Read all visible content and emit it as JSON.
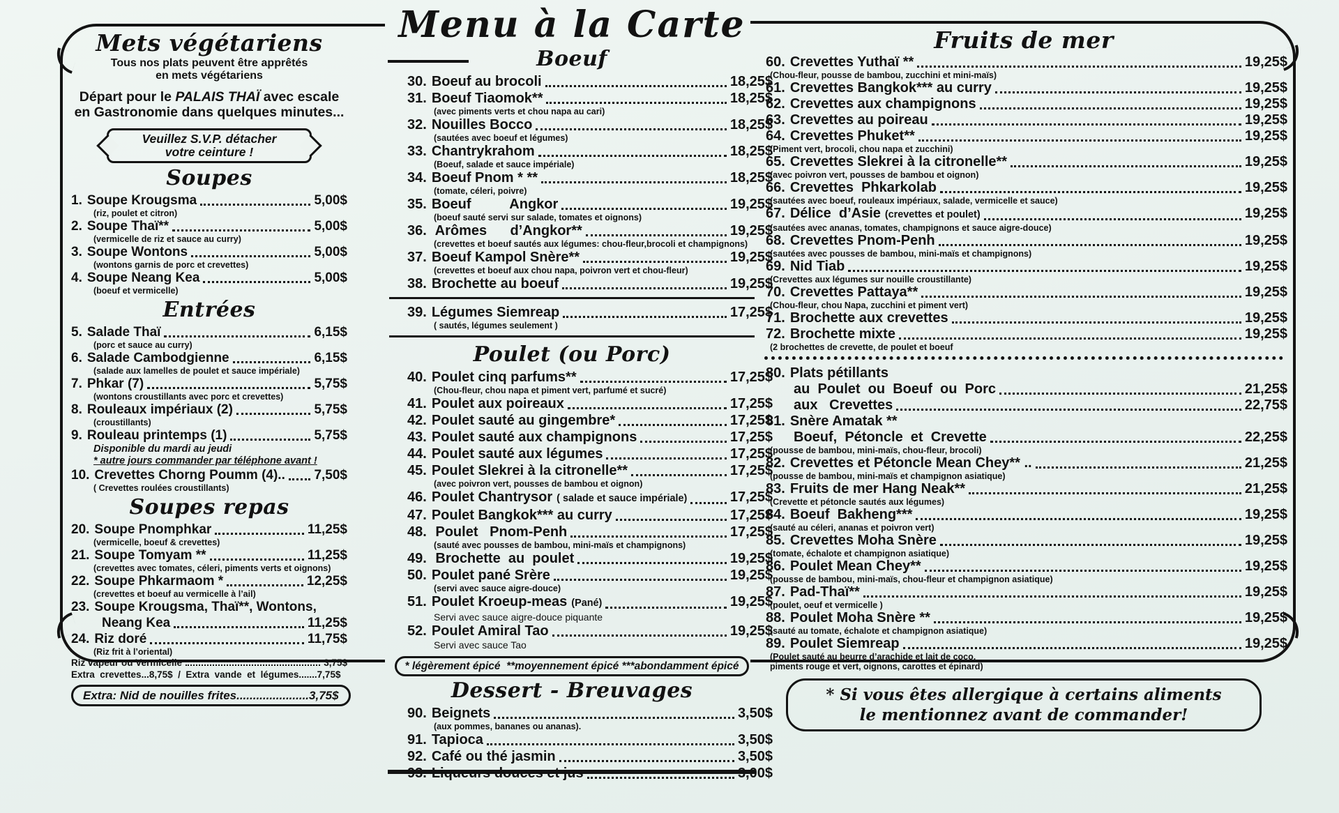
{
  "page": {
    "title": "Menu à la Carte",
    "ink": "#121212",
    "paper": "#edf3f0"
  },
  "left": {
    "title": "Mets végétariens",
    "subtitle1": "Tous nos plats peuvent être apprêtés",
    "subtitle2": "en mets végétariens",
    "intro1_pre": "Départ pour le ",
    "intro1_em": "PALAIS THAÏ",
    "intro1_post": " avec escale",
    "intro2": "en Gastronomie dans quelques minutes...",
    "banner1": "Veuillez S.V.P. détacher",
    "banner2": "votre ceinture !",
    "sections": [
      {
        "heading": "Soupes",
        "items": [
          {
            "num": "1.",
            "name": "Soupe Krougsma",
            "price": "5,00$",
            "notes": [
              {
                "t": "(riz, poulet et citron)",
                "s": "small"
              }
            ]
          },
          {
            "num": "2.",
            "name": "Soupe Thaï**",
            "price": "5,00$",
            "notes": [
              {
                "t": "(vermicelle de riz et sauce au curry)",
                "s": "small"
              }
            ]
          },
          {
            "num": "3.",
            "name": "Soupe Wontons",
            "price": "5,00$",
            "notes": [
              {
                "t": "(wontons garnis de porc et crevettes)",
                "s": "small"
              }
            ]
          },
          {
            "num": "4.",
            "name": "Soupe Neang Kea",
            "price": "5,00$",
            "notes": [
              {
                "t": "(boeuf et vermicelle)",
                "s": "small"
              }
            ]
          }
        ]
      },
      {
        "heading": "Entrées",
        "items": [
          {
            "num": "5.",
            "name": "Salade Thaï",
            "price": "6,15$",
            "notes": [
              {
                "t": "(porc et sauce au curry)",
                "s": "small"
              }
            ]
          },
          {
            "num": "6.",
            "name": "Salade Cambodgienne",
            "price": "6,15$",
            "notes": [
              {
                "t": "(salade aux lamelles de poulet et sauce impériale)",
                "s": "small"
              }
            ]
          },
          {
            "num": "7.",
            "name": "Phkar (7)",
            "price": "5,75$",
            "notes": [
              {
                "t": "(wontons croustillants avec porc et crevettes)",
                "s": "small"
              }
            ]
          },
          {
            "num": "8.",
            "name": "Rouleaux impériaux (2)",
            "price": "5,75$",
            "notes": [
              {
                "t": "(croustillants)",
                "s": "small"
              }
            ]
          },
          {
            "num": "9.",
            "name": "Rouleau printemps (1)",
            "price": "5,75$",
            "notes": [
              {
                "t": "Disponible du mardi au jeudi",
                "s": "italic"
              },
              {
                "t": "* autre jours commander par téléphone avant !",
                "s": "underline"
              }
            ]
          },
          {
            "num": "10.",
            "name": "Crevettes Chorng Poumm (4)..",
            "price": "7,50$",
            "notes": [
              {
                "t": "( Crevettes roulées croustillants)",
                "s": "small"
              }
            ]
          }
        ]
      },
      {
        "heading": "Soupes repas",
        "items": [
          {
            "num": "20.",
            "name": "Soupe Pnomphkar",
            "price": "11,25$",
            "notes": [
              {
                "t": "(vermicelle, boeuf & crevettes)",
                "s": "small"
              }
            ]
          },
          {
            "num": "21.",
            "name": "Soupe Tomyam **",
            "price": "11,25$",
            "notes": [
              {
                "t": "(crevettes avec tomates, céleri, piments verts et oignons)",
                "s": "small"
              }
            ]
          },
          {
            "num": "22.",
            "name": "Soupe Phkarmaom *",
            "price": "12,25$",
            "notes": [
              {
                "t": "(crevettes et boeuf au vermicelle à l’ail)",
                "s": "small"
              }
            ]
          },
          {
            "num": "23.",
            "name": "Soupe Krougsma, Thaï**, Wontons,",
            "line2": "Neang Kea",
            "price": "11,25$"
          },
          {
            "num": "24.",
            "name": "Riz doré",
            "price": "11,75$",
            "notes": [
              {
                "t": "(Riz frit à l’oriental)",
                "s": "small"
              }
            ]
          }
        ]
      }
    ],
    "extra1": {
      "text": "Riz vapeur ou Vermicelle",
      "price": "3,75$"
    },
    "extra2": "Extra  crevettes...8,75$  /  Extra  vande  et  légumes.......7,75$",
    "extra_box": "Extra: Nid de nouilles frites......................3,75$"
  },
  "middle": {
    "title": "Menu à la Carte",
    "boeuf_heading": "Boeuf",
    "boeuf_items": [
      {
        "num": "30.",
        "name": "Boeuf au brocoli",
        "price": "18,25$"
      },
      {
        "num": "31.",
        "name": "Boeuf Tiaomok**",
        "price": "18,25$",
        "notes": [
          {
            "t": "(avec piments verts et chou napa au cari)",
            "s": "small"
          }
        ]
      },
      {
        "num": "32.",
        "name": "Nouilles Bocco",
        "price": "18,25$",
        "notes": [
          {
            "t": "(sautées avec boeuf et légumes)",
            "s": "small"
          }
        ]
      },
      {
        "num": "33.",
        "name": "Chantrykrahom",
        "price": "18,25$",
        "notes": [
          {
            "t": "(Boeuf, salade et sauce impériale)",
            "s": "small"
          }
        ]
      },
      {
        "num": "34.",
        "name": "Boeuf Pnom * **",
        "price": "18,25$",
        "notes": [
          {
            "t": "(tomate, céleri, poivre)",
            "s": "small"
          }
        ]
      },
      {
        "num": "35.",
        "name": "Boeuf          Angkor",
        "price": "19,25$",
        "notes": [
          {
            "t": "(boeuf sauté servi sur salade, tomates et oignons)",
            "s": "small"
          }
        ]
      },
      {
        "num": "36.",
        "name": " Arômes      d’Angkor**",
        "price": "19,25$",
        "notes": [
          {
            "t": "(crevettes et boeuf sautés aux légumes: chou-fleur,brocoli et champignons)",
            "s": "small"
          }
        ]
      },
      {
        "num": "37.",
        "name": "Boeuf Kampol Snère**",
        "price": "19,25$",
        "notes": [
          {
            "t": "(crevettes et boeuf aux chou napa, poivron vert et chou-fleur)",
            "s": "small"
          }
        ]
      },
      {
        "num": "38.",
        "name": "Brochette au boeuf",
        "price": "19,25$"
      }
    ],
    "siemreap_items": [
      {
        "num": "39.",
        "name": "Légumes Siemreap",
        "price": "17,25$",
        "notes": [
          {
            "t": "( sautés, légumes seulement )",
            "s": "small"
          }
        ]
      }
    ],
    "poulet_heading": "Poulet (ou Porc)",
    "poulet_items": [
      {
        "num": "40.",
        "name": "Poulet cinq parfums**",
        "price": "17,25$",
        "notes": [
          {
            "t": "(Chou-fleur, chou napa et piment vert, parfumé et sucré)",
            "s": "small"
          }
        ]
      },
      {
        "num": "41.",
        "name": "Poulet aux poireaux",
        "price": "17,25$"
      },
      {
        "num": "42.",
        "name": "Poulet sauté au gingembre*",
        "price": "17,25$"
      },
      {
        "num": "43.",
        "name": "Poulet sauté aux champignons",
        "price": "17,25$"
      },
      {
        "num": "44.",
        "name": "Poulet sauté aux légumes",
        "price": "17,25$"
      },
      {
        "num": "45.",
        "name": "Poulet Slekrei à la citronelle**",
        "price": "17,25$",
        "notes": [
          {
            "t": "(avec poivron vert, pousses de bambou et oignon)",
            "s": "small"
          }
        ]
      },
      {
        "num": "46.",
        "name": "Poulet Chantrysor",
        "inline": "( salade et sauce impériale)",
        "price": "17,25$"
      },
      {
        "num": "47.",
        "name": "Poulet Bangkok*** au curry",
        "price": "17,25$"
      },
      {
        "num": "48.",
        "name": " Poulet   Pnom-Penh",
        "price": "17,25$",
        "notes": [
          {
            "t": "(sauté avec pousses de bambou, mini-maïs et champignons)",
            "s": "small"
          }
        ]
      },
      {
        "num": "49.",
        "name": " Brochette  au  poulet",
        "price": "19,25$"
      },
      {
        "num": "50.",
        "name": "Poulet pané Srère",
        "price": "19,25$",
        "notes": [
          {
            "t": "(servi avec sauce aigre-douce)",
            "s": "small"
          }
        ]
      },
      {
        "num": "51.",
        "name": "Poulet Kroeup-meas",
        "inline": "(Pané)",
        "price": "19,25$",
        "notes": [
          {
            "t": "Servi avec sauce aigre-douce piquante",
            "s": "plain"
          }
        ]
      },
      {
        "num": "52.",
        "name": "Poulet Amiral Tao",
        "price": "19,25$",
        "notes": [
          {
            "t": "Servi avec sauce Tao",
            "s": "plain"
          }
        ]
      }
    ],
    "spice_note": "* légèrement épicé  **moyennement épicé ***abondamment épicé",
    "dessert_heading": "Dessert - Breuvages",
    "dessert_items": [
      {
        "num": "90.",
        "name": "Beignets",
        "price": "3,50$",
        "notes": [
          {
            "t": "(aux pommes, bananes ou ananas).",
            "s": "small"
          }
        ]
      },
      {
        "num": "91.",
        "name": "Tapioca",
        "price": "3,50$"
      },
      {
        "num": "92.",
        "name": "Café ou thé jasmin",
        "price": "3,50$"
      },
      {
        "num": "93.",
        "name": "Liqueurs douces et jus",
        "price": "3,00$"
      }
    ]
  },
  "right": {
    "title": "Fruits de mer",
    "items_a": [
      {
        "num": "60.",
        "name": "Crevettes Yuthaï **",
        "price": "19,25$",
        "notes": [
          {
            "t": "(Chou-fleur, pousse de bambou, zucchini et mini-maïs)",
            "s": "small"
          }
        ]
      },
      {
        "num": "61.",
        "name": "Crevettes Bangkok*** au curry",
        "price": "19,25$"
      },
      {
        "num": "62.",
        "name": "Crevettes aux champignons",
        "price": "19,25$"
      },
      {
        "num": "63.",
        "name": "Crevettes au poireau",
        "price": "19,25$"
      },
      {
        "num": "64.",
        "name": "Crevettes Phuket**",
        "price": "19,25$",
        "notes": [
          {
            "t": "(Piment vert, brocoli, chou napa et zucchini)",
            "s": "small"
          }
        ]
      },
      {
        "num": "65.",
        "name": "Crevettes Slekrei à la citronelle**",
        "price": "19,25$",
        "notes": [
          {
            "t": "(avec poivron vert, pousses de bambou et oignon)",
            "s": "small"
          }
        ]
      },
      {
        "num": "66.",
        "name": "Crevettes  Phkarkolab",
        "price": "19,25$",
        "notes": [
          {
            "t": "(sautées avec boeuf, rouleaux impériaux, salade, vermicelle et sauce)",
            "s": "small"
          }
        ]
      },
      {
        "num": "67.",
        "name": "Délice  d’Asie",
        "inline": "(crevettes et poulet)",
        "price": "19,25$",
        "notes": [
          {
            "t": "(sautées avec ananas, tomates, champignons et sauce aigre-douce)",
            "s": "small"
          }
        ]
      },
      {
        "num": "68.",
        "name": "Crevettes Pnom-Penh",
        "price": "19,25$",
        "notes": [
          {
            "t": "(sautées avec pousses de bambou, mini-maïs et champignons)",
            "s": "small"
          }
        ]
      },
      {
        "num": "69.",
        "name": "Nid Tiab",
        "price": "19,25$",
        "notes": [
          {
            "t": "(Crevettes aux légumes sur nouille croustillante)",
            "s": "small"
          }
        ]
      },
      {
        "num": "70.",
        "name": "Crevettes Pattaya**",
        "price": "19,25$",
        "notes": [
          {
            "t": "(Chou-fleur, chou Napa, zucchini et piment vert)",
            "s": "small"
          }
        ]
      },
      {
        "num": "71.",
        "name": "Brochette aux crevettes",
        "price": "19,25$"
      },
      {
        "num": "72.",
        "name": "Brochette mixte",
        "price": "19,25$",
        "notes": [
          {
            "t": "(2 brochettes de crevette, de poulet et boeuf",
            "s": "small"
          }
        ]
      }
    ],
    "items_b": [
      {
        "num": "80.",
        "name": "Plats pétillants",
        "sublines": [
          {
            "t": "au  Poulet  ou  Boeuf  ou  Porc",
            "price": "21,25$"
          },
          {
            "t": "aux   Crevettes",
            "price": "22,75$"
          }
        ]
      },
      {
        "num": "81.",
        "name": "Snère Amatak **",
        "sublines": [
          {
            "t": "Boeuf,  Pétoncle  et  Crevette",
            "price": "22,25$"
          }
        ],
        "notes": [
          {
            "t": "(pousse de bambou, mini-maïs, chou-fleur, brocoli)",
            "s": "small"
          }
        ]
      },
      {
        "num": "82.",
        "name": "Crevettes et Pétoncle Mean Chey** ..",
        "price": "21,25$",
        "notes": [
          {
            "t": "(pousse de bambou, mini-maïs et champignon asiatique)",
            "s": "small"
          }
        ]
      },
      {
        "num": "83.",
        "name": "Fruits de mer Hang Neak**",
        "price": "21,25$",
        "notes": [
          {
            "t": "(Crevette et pétoncle sautés aux légumes)",
            "s": "small"
          }
        ]
      },
      {
        "num": "84.",
        "name": "Boeuf  Bakheng***",
        "price": "19,25$",
        "notes": [
          {
            "t": "(sauté au céleri, ananas et poivron vert)",
            "s": "small"
          }
        ]
      },
      {
        "num": "85.",
        "name": "Crevettes Moha Snère",
        "price": "19,25$",
        "notes": [
          {
            "t": "(tomate, échalote et champignon asiatique)",
            "s": "small"
          }
        ]
      },
      {
        "num": "86.",
        "name": "Poulet Mean Chey**",
        "price": "19,25$",
        "notes": [
          {
            "t": "(pousse de bambou, mini-maïs, chou-fleur et champignon asiatique)",
            "s": "small"
          }
        ]
      },
      {
        "num": "87.",
        "name": "Pad-Thaï**",
        "price": "19,25$",
        "notes": [
          {
            "t": "(poulet, oeuf et vermicelle )",
            "s": "small"
          }
        ]
      },
      {
        "num": "88.",
        "name": "Poulet Moha Snère **",
        "price": "19,25$",
        "notes": [
          {
            "t": "(sauté au tomate, échalote et champignon asiatique)",
            "s": "small"
          }
        ]
      },
      {
        "num": "89.",
        "name": "Poulet Siemreap",
        "price": "19,25$",
        "notes": [
          {
            "t": "(Poulet sauté au beurre d’arachide et lait de coco,",
            "s": "small"
          },
          {
            "t": "piments rouge et vert, oignons, carottes et épinard)",
            "s": "small"
          }
        ]
      }
    ],
    "allergy1": "* Si vous êtes allergique à certains aliments",
    "allergy2": "le mentionnez avant de commander!"
  }
}
